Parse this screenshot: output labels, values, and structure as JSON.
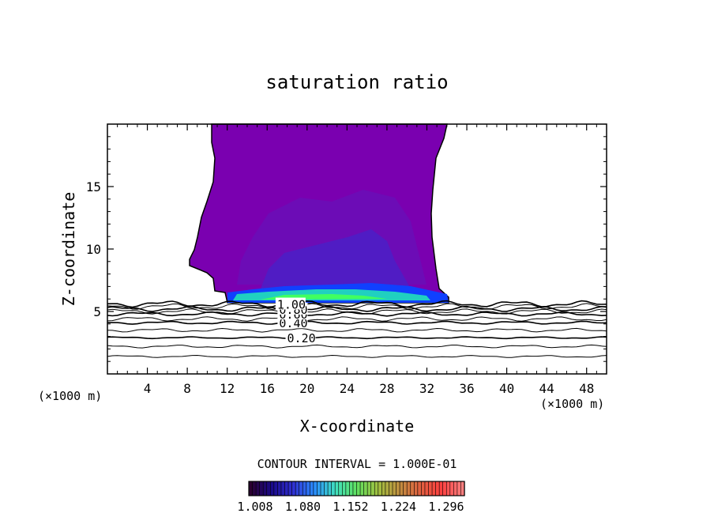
{
  "chart_data": {
    "type": "contour",
    "title": "saturation ratio",
    "xlabel": "X-coordinate",
    "ylabel": "Z-coordinate",
    "x_unit_label_left": "(×1000 m)",
    "x_unit_label_right": "(×1000 m)",
    "xlim": [
      0,
      50
    ],
    "ylim": [
      0,
      20
    ],
    "x_ticks": [
      4,
      8,
      12,
      16,
      20,
      24,
      28,
      32,
      36,
      40,
      44,
      48
    ],
    "y_ticks": [
      5,
      10,
      15
    ],
    "contour_lines": [
      {
        "level": 0.2,
        "z": 2.9,
        "label": "0.20",
        "label_x": 18
      },
      {
        "level": 0.4,
        "z": 4.1,
        "label": "0.40",
        "label_x": 17.2
      },
      {
        "level": 0.6,
        "z": 4.8,
        "label": "0.60",
        "label_x": 17.2
      },
      {
        "level": 0.8,
        "z": 5.2,
        "label": "0.80",
        "label_x": 17.2
      },
      {
        "level": 1.0,
        "z": 5.6,
        "label": "1.00",
        "label_x": 17.0
      }
    ],
    "contour_interval_text": "CONTOUR INTERVAL = 1.000E-01",
    "colorbar": {
      "ticks": [
        "1.008",
        "1.080",
        "1.152",
        "1.224",
        "1.296"
      ],
      "colors": [
        "#2a0030",
        "#1a0a8a",
        "#3030d0",
        "#2a8cff",
        "#40e0c0",
        "#60e060",
        "#a0c040",
        "#c09040",
        "#e06040",
        "#ff4040",
        "#ff8080"
      ]
    },
    "fill_region": {
      "color": "#7a00b0",
      "inner_color": "#6810b8",
      "core_color": "#4a20c8",
      "base_colors": [
        "#1040ff",
        "#20d0c0",
        "#40ff60"
      ]
    }
  }
}
